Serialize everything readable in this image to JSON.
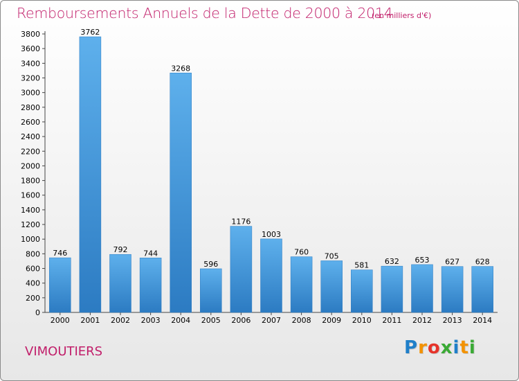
{
  "chart_data": {
    "type": "bar",
    "title": "Remboursements Annuels de la Dette de 2000 à 2014",
    "subtitle": "(en milliers d'€)",
    "categories": [
      "2000",
      "2001",
      "2002",
      "2003",
      "2004",
      "2005",
      "2006",
      "2007",
      "2008",
      "2009",
      "2010",
      "2011",
      "2012",
      "2013",
      "2014"
    ],
    "values": [
      746,
      3762,
      792,
      744,
      3268,
      596,
      1176,
      1003,
      760,
      705,
      581,
      632,
      653,
      627,
      628
    ],
    "ylim": [
      0,
      3800
    ],
    "yticks": [
      0,
      200,
      400,
      600,
      800,
      1000,
      1200,
      1400,
      1600,
      1800,
      2000,
      2200,
      2400,
      2600,
      2800,
      3000,
      3200,
      3400,
      3600,
      3800
    ],
    "grid": false,
    "bar_color": "#3c8fd6",
    "value_labels": true
  },
  "page": {
    "commune": "VIMOUTIERS",
    "logo_letters": [
      "P",
      "r",
      "o",
      "x",
      "i",
      "t",
      "i"
    ],
    "logo_colors": [
      "#1f7fc9",
      "#f39200",
      "#e6332a",
      "#3aaa35",
      "#1f7fc9",
      "#f39200",
      "#3aaa35"
    ]
  }
}
